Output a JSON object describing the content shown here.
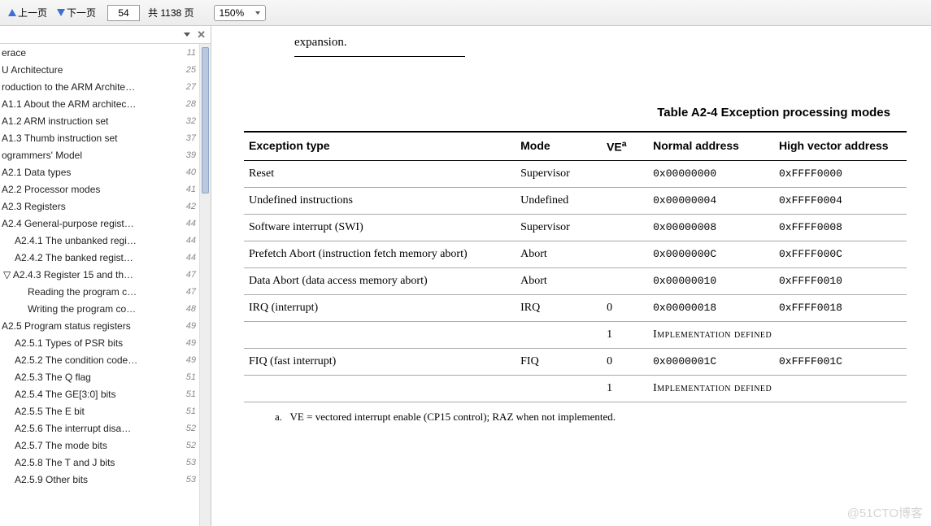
{
  "toolbar": {
    "prev_label": "上一页",
    "next_label": "下一页",
    "page_value": "54",
    "total_pages_label": "共 1138 页",
    "zoom_value": "150%"
  },
  "sidebar": {
    "items": [
      {
        "label": "erace",
        "page": "11",
        "indent": 0
      },
      {
        "label": "U Architecture",
        "page": "25",
        "indent": 0
      },
      {
        "label": "roduction to the ARM Archite…",
        "page": "27",
        "indent": 0
      },
      {
        "label": "A1.1 About the ARM architec…",
        "page": "28",
        "indent": 0
      },
      {
        "label": "A1.2 ARM instruction set",
        "page": "32",
        "indent": 0
      },
      {
        "label": "A1.3 Thumb instruction set",
        "page": "37",
        "indent": 0
      },
      {
        "label": "ogrammers' Model",
        "page": "39",
        "indent": 0
      },
      {
        "label": "A2.1 Data types",
        "page": "40",
        "indent": 0
      },
      {
        "label": "A2.2 Processor modes",
        "page": "41",
        "indent": 0
      },
      {
        "label": "A2.3 Registers",
        "page": "42",
        "indent": 0
      },
      {
        "label": "A2.4 General-purpose regist…",
        "page": "44",
        "indent": 0
      },
      {
        "label": "A2.4.1 The unbanked regi…",
        "page": "44",
        "indent": 1
      },
      {
        "label": "A2.4.2 The banked regist…",
        "page": "44",
        "indent": 1
      },
      {
        "label": "A2.4.3 Register 15 and th…",
        "page": "47",
        "indent": 1,
        "expanded": true
      },
      {
        "label": "Reading the program c…",
        "page": "47",
        "indent": 2
      },
      {
        "label": "Writing the program co…",
        "page": "48",
        "indent": 2
      },
      {
        "label": "A2.5 Program status registers",
        "page": "49",
        "indent": 0
      },
      {
        "label": "A2.5.1 Types of PSR bits",
        "page": "49",
        "indent": 1
      },
      {
        "label": "A2.5.2 The condition code…",
        "page": "49",
        "indent": 1
      },
      {
        "label": "A2.5.3 The Q flag",
        "page": "51",
        "indent": 1
      },
      {
        "label": "A2.5.4 The GE[3:0] bits",
        "page": "51",
        "indent": 1
      },
      {
        "label": "A2.5.5 The E bit",
        "page": "51",
        "indent": 1
      },
      {
        "label": "A2.5.6 The interrupt disa…",
        "page": "52",
        "indent": 1
      },
      {
        "label": "A2.5.7 The mode bits",
        "page": "52",
        "indent": 1
      },
      {
        "label": "A2.5.8 The T and J bits",
        "page": "53",
        "indent": 1
      },
      {
        "label": "A2.5.9 Other bits",
        "page": "53",
        "indent": 1
      }
    ]
  },
  "content": {
    "expansion_text": "expansion.",
    "table_title": "Table A2-4 Exception processing modes",
    "headers": {
      "type": "Exception type",
      "mode": "Mode",
      "ve": "VE",
      "ve_sup": "a",
      "normal": "Normal address",
      "high": "High vector address"
    },
    "rows": [
      {
        "type": "Reset",
        "mode": "Supervisor",
        "ve": "",
        "normal": "0x00000000",
        "high": "0xFFFF0000"
      },
      {
        "type": "Undefined instructions",
        "mode": "Undefined",
        "ve": "",
        "normal": "0x00000004",
        "high": "0xFFFF0004"
      },
      {
        "type": "Software interrupt (SWI)",
        "mode": "Supervisor",
        "ve": "",
        "normal": "0x00000008",
        "high": "0xFFFF0008"
      },
      {
        "type": "Prefetch Abort (instruction fetch memory abort)",
        "mode": "Abort",
        "ve": "",
        "normal": "0x0000000C",
        "high": "0xFFFF000C"
      },
      {
        "type": "Data Abort (data access memory abort)",
        "mode": "Abort",
        "ve": "",
        "normal": "0x00000010",
        "high": "0xFFFF0010"
      },
      {
        "type": "IRQ (interrupt)",
        "mode": "IRQ",
        "ve": "0",
        "normal": "0x00000018",
        "high": "0xFFFF0018"
      },
      {
        "type": "",
        "mode": "",
        "ve": "1",
        "normal_span": "Implementation defined",
        "high": ""
      },
      {
        "type": "FIQ (fast interrupt)",
        "mode": "FIQ",
        "ve": "0",
        "normal": "0x0000001C",
        "high": "0xFFFF001C"
      },
      {
        "type": "",
        "mode": "",
        "ve": "1",
        "normal_span": "Implementation defined",
        "high": ""
      }
    ],
    "footnote_label": "a.",
    "footnote_text": "VE = vectored interrupt enable (CP15 control); RAZ when not implemented.",
    "watermark": "@51CTO博客"
  }
}
